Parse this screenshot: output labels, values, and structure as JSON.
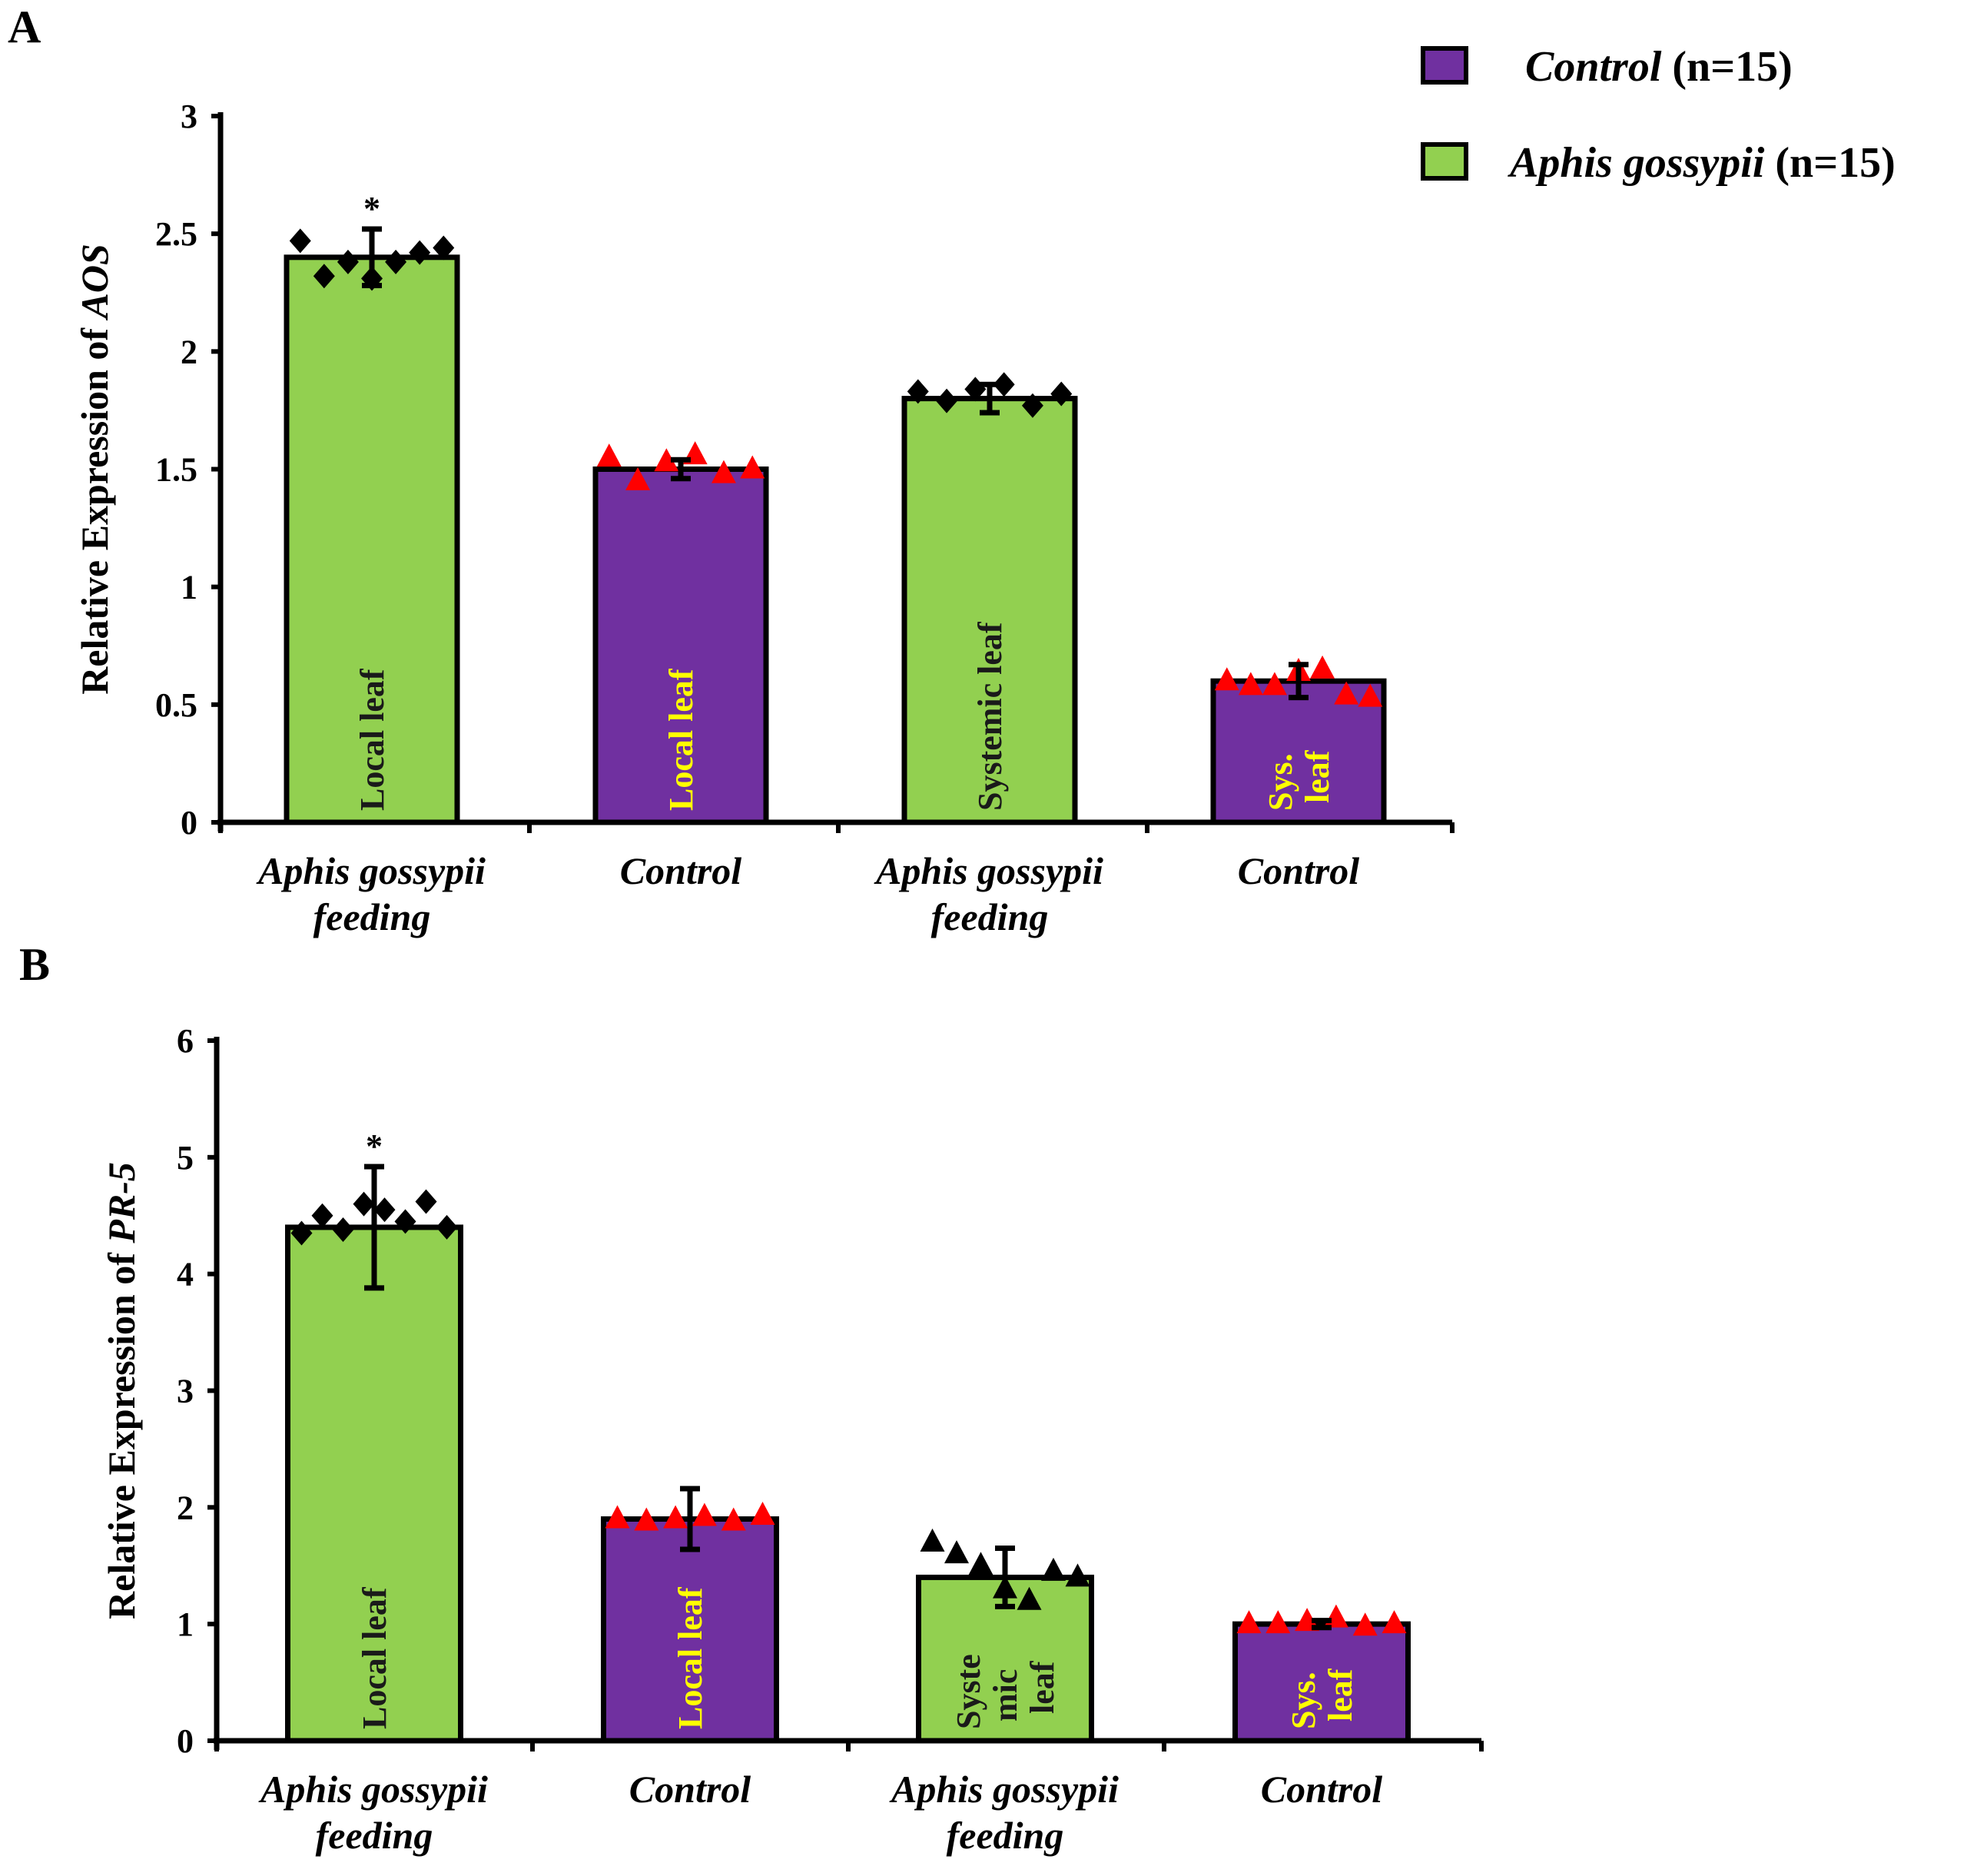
{
  "colors": {
    "control": "#7030A0",
    "aphis": "#92D050",
    "inner_text_green": "#1a1a1a",
    "inner_text_purple": "#FFFF00",
    "marker_red": "#FF0000",
    "marker_black": "#000000"
  },
  "legend": [
    {
      "label": "Control",
      "n": "(n=15)",
      "n_italic": "n",
      "n_rest": "=15",
      "color": "#7030A0"
    },
    {
      "label": "Aphis gossypii",
      "n": "(n=15)",
      "n_italic": "n",
      "n_rest": "=15",
      "color": "#92D050"
    }
  ],
  "chart_data": [
    {
      "type": "bar",
      "panel": "A",
      "ylabel_prefix": "Relative Expression of ",
      "ylabel_gene": "AOS",
      "ylim": [
        0,
        3
      ],
      "yticks": [
        "0",
        "0.5",
        "1",
        "1.5",
        "2",
        "2.5",
        "3"
      ],
      "ytick_values": [
        0,
        0.5,
        1,
        1.5,
        2,
        2.5,
        3
      ],
      "categories": [
        [
          "Aphis gossypii",
          "feeding"
        ],
        [
          "Control"
        ],
        [
          "Aphis gossypii",
          "feeding"
        ],
        [
          "Control"
        ]
      ],
      "values": [
        2.4,
        1.5,
        1.8,
        0.6
      ],
      "errors": [
        0.12,
        0.04,
        0.06,
        0.07
      ],
      "groups": [
        "aphis",
        "control",
        "aphis",
        "control"
      ],
      "inner_labels": [
        [
          "Local leaf"
        ],
        [
          "Local leaf"
        ],
        [
          "Systemic leaf"
        ],
        [
          "Sys.",
          "leaf"
        ]
      ],
      "significance": [
        "*",
        "",
        "",
        ""
      ],
      "markers": [
        "diamond",
        "triangle-red",
        "diamond",
        "triangle-red"
      ],
      "points": [
        [
          2.47,
          2.32,
          2.38,
          2.31,
          2.38,
          2.42,
          2.44
        ],
        [
          1.55,
          1.45,
          1.53,
          1.56,
          1.48,
          1.5
        ],
        [
          1.83,
          1.79,
          1.84,
          1.86,
          1.77,
          1.82
        ],
        [
          0.6,
          0.58,
          0.58,
          0.64,
          0.65,
          0.54,
          0.53
        ]
      ]
    },
    {
      "type": "bar",
      "panel": "B",
      "ylabel_prefix": "Relative Expression of ",
      "ylabel_gene": "PR-5",
      "ylim": [
        0,
        6
      ],
      "yticks": [
        "0",
        "1",
        "2",
        "3",
        "4",
        "5",
        "6"
      ],
      "ytick_values": [
        0,
        1,
        2,
        3,
        4,
        5,
        6
      ],
      "categories": [
        [
          "Aphis gossypii",
          "feeding"
        ],
        [
          "Control"
        ],
        [
          "Aphis gossypii",
          "feeding"
        ],
        [
          "Control"
        ]
      ],
      "values": [
        4.4,
        1.9,
        1.4,
        1.0
      ],
      "errors": [
        0.52,
        0.26,
        0.25,
        0.03
      ],
      "groups": [
        "aphis",
        "control",
        "aphis",
        "control"
      ],
      "inner_labels": [
        [
          "Local leaf"
        ],
        [
          "Local leaf"
        ],
        [
          "Syste",
          "mic",
          "leaf"
        ],
        [
          "Sys.",
          "leaf"
        ]
      ],
      "significance": [
        "*",
        "",
        "",
        ""
      ],
      "markers": [
        "diamond",
        "triangle-red",
        "triangle-black",
        "triangle-red"
      ],
      "points": [
        [
          4.35,
          4.5,
          4.38,
          4.6,
          4.55,
          4.45,
          4.62,
          4.4
        ],
        [
          1.9,
          1.88,
          1.9,
          1.92,
          1.88,
          1.93
        ],
        [
          1.7,
          1.6,
          1.5,
          1.3,
          1.2,
          1.45,
          1.4
        ],
        [
          1.0,
          1.0,
          1.02,
          1.05,
          0.98,
          1.0
        ]
      ]
    }
  ]
}
